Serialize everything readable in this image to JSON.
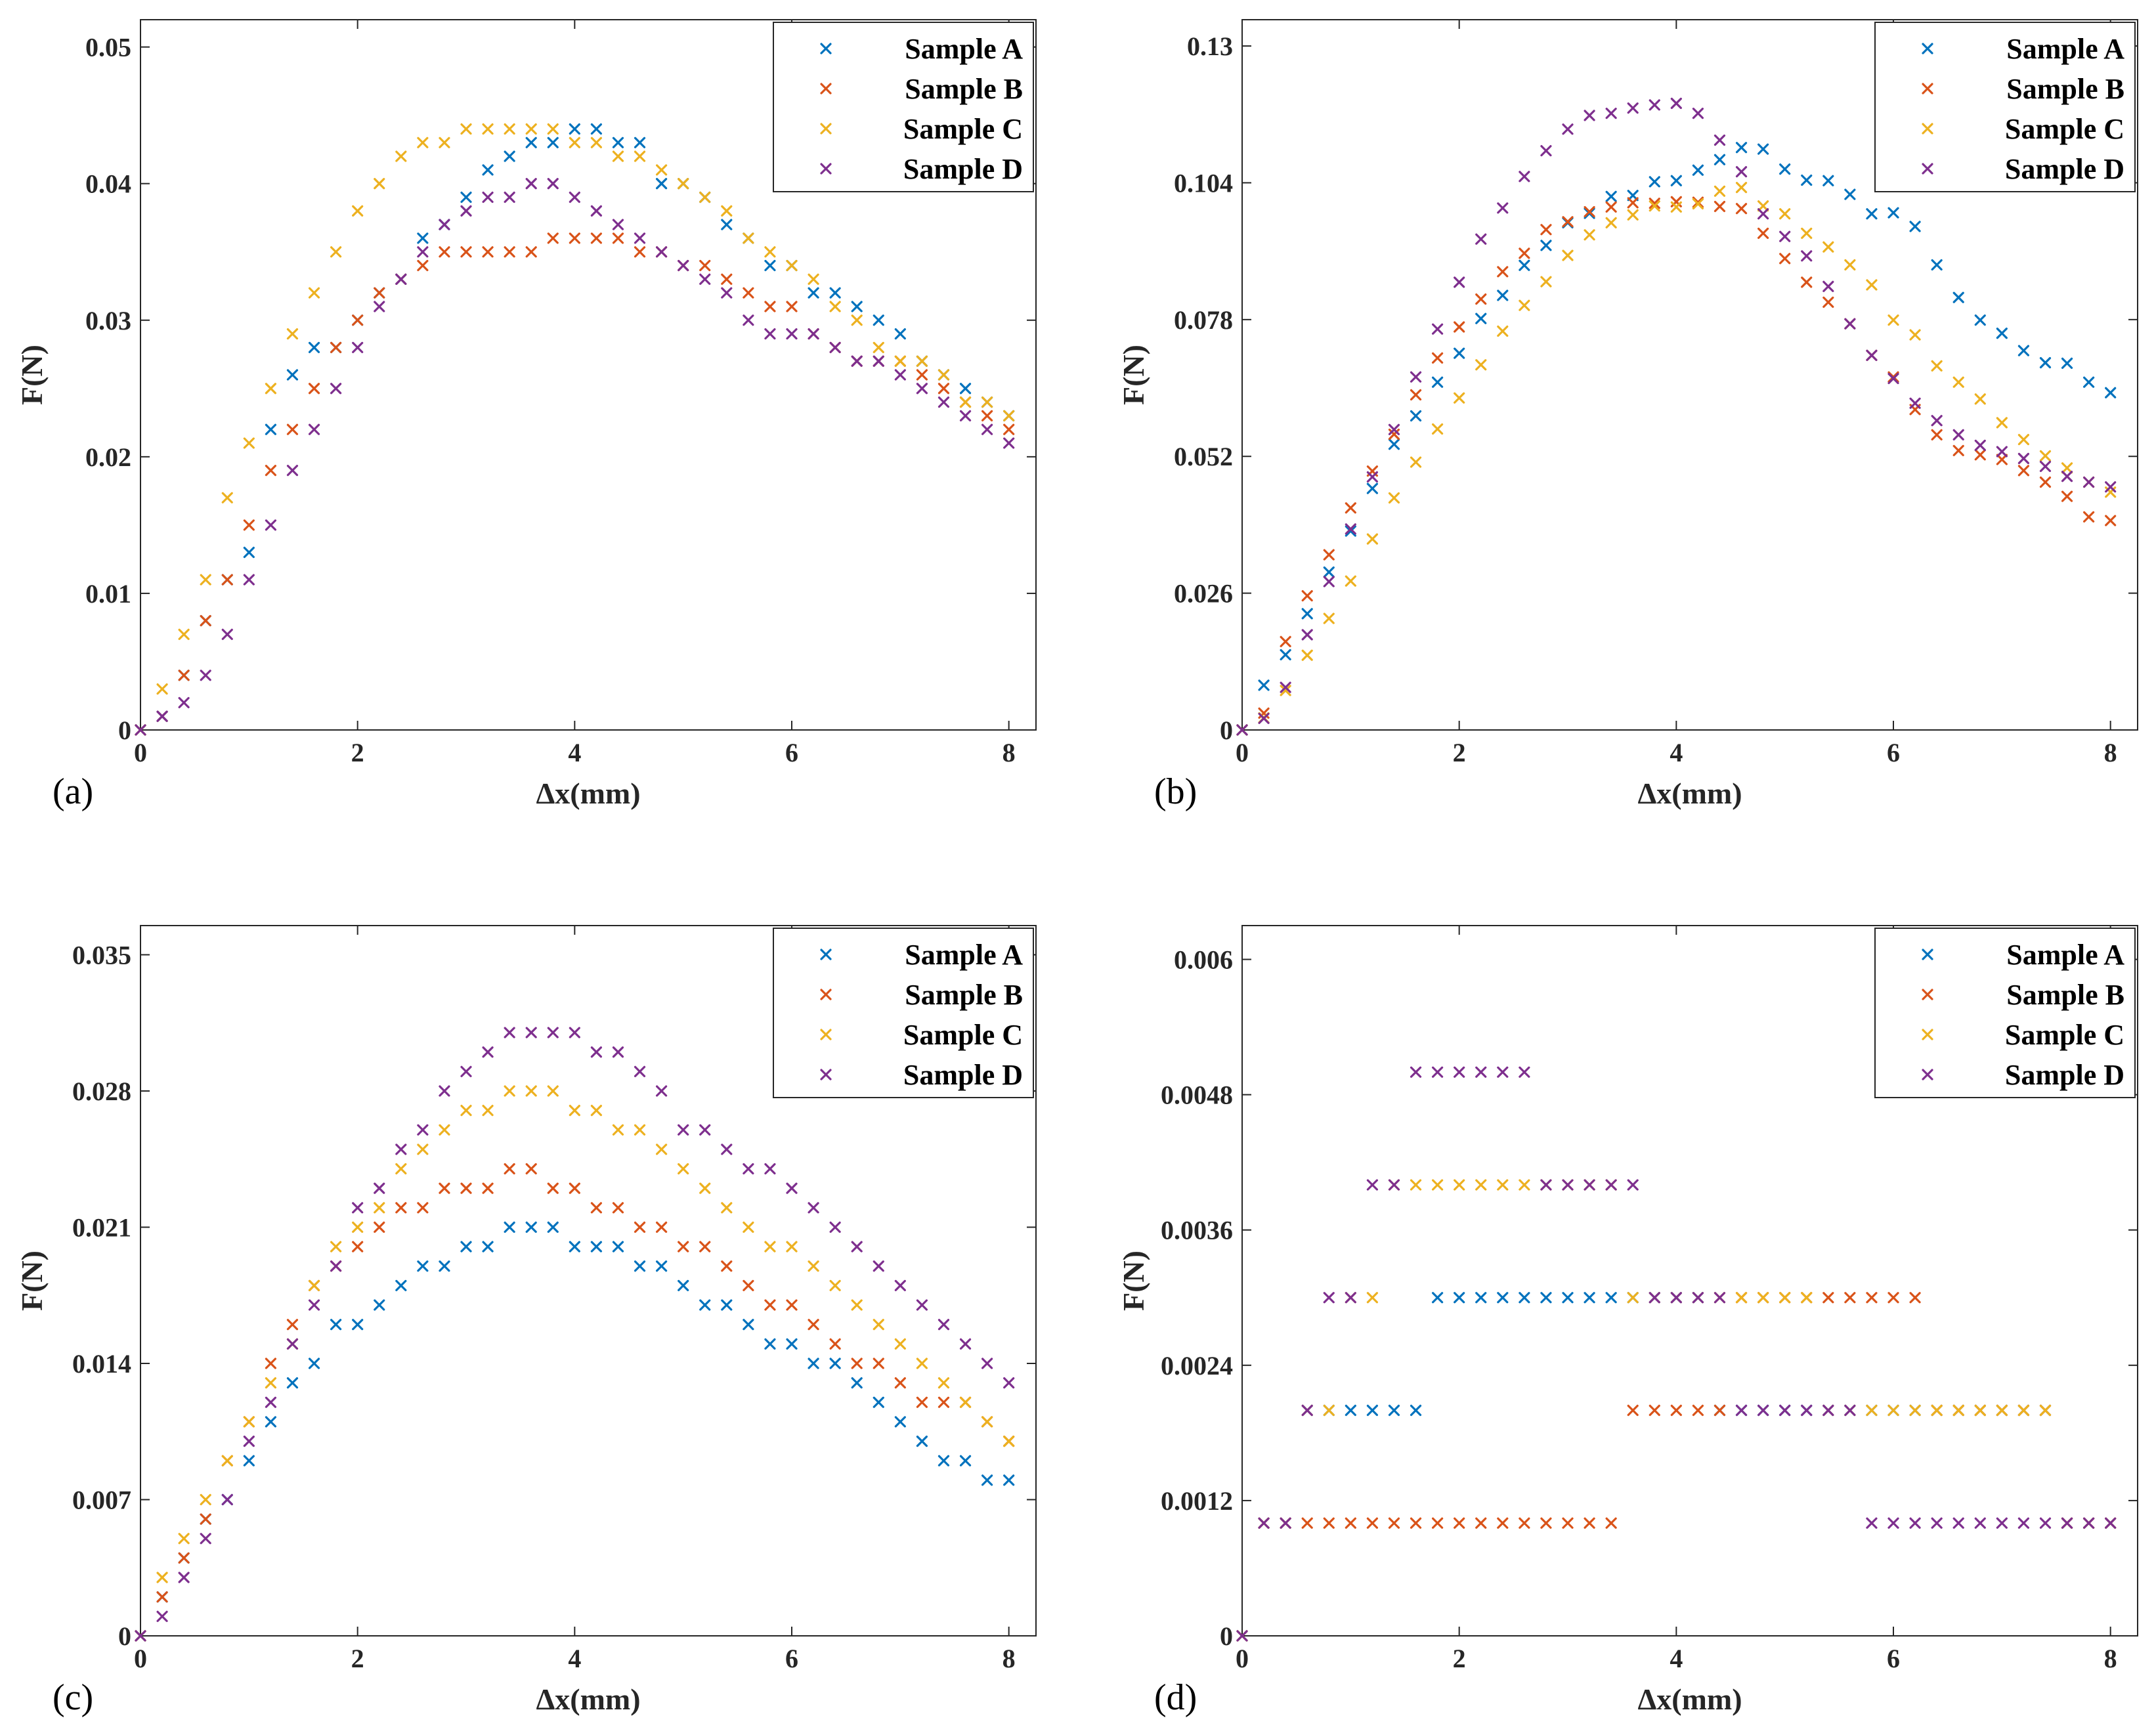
{
  "colors": {
    "Sample A": "#0072BD",
    "Sample B": "#D95319",
    "Sample C": "#EDB120",
    "Sample D": "#7E2F8E"
  },
  "chart_data": [
    {
      "panel": "(a)",
      "type": "scatter",
      "xlabel": "Δx(mm)",
      "ylabel": "F(N)",
      "xlim": [
        0,
        8.25
      ],
      "ylim": [
        0,
        0.052
      ],
      "xticks": [
        0,
        2,
        4,
        6,
        8
      ],
      "xtick_labels": [
        "0",
        "2",
        "4",
        "6",
        "8"
      ],
      "yticks": [
        0,
        0.01,
        0.02,
        0.03,
        0.04,
        0.05
      ],
      "ytick_labels": [
        "0",
        "0.01",
        "0.02",
        "0.03",
        "0.04",
        "0.05"
      ],
      "legend": [
        "Sample A",
        "Sample B",
        "Sample C",
        "Sample D"
      ],
      "legend_position": "top-right",
      "x": [
        0,
        0.2,
        0.4,
        0.6,
        0.8,
        1.0,
        1.2,
        1.4,
        1.6,
        1.8,
        2.0,
        2.2,
        2.4,
        2.6,
        2.8,
        3.0,
        3.2,
        3.4,
        3.6,
        3.8,
        4.0,
        4.2,
        4.4,
        4.6,
        4.8,
        5.0,
        5.2,
        5.4,
        5.6,
        5.8,
        6.0,
        6.2,
        6.4,
        6.6,
        6.8,
        7.0,
        7.2,
        7.4,
        7.6,
        7.8,
        8.0
      ],
      "series": [
        {
          "name": "Sample A",
          "values": [
            0,
            0.001,
            0.004,
            0.008,
            0.011,
            0.013,
            0.022,
            0.026,
            0.028,
            0.028,
            0.03,
            0.032,
            0.033,
            0.036,
            0.037,
            0.039,
            0.041,
            0.042,
            0.043,
            0.043,
            0.044,
            0.044,
            0.043,
            0.043,
            0.04,
            0.04,
            0.039,
            0.037,
            0.036,
            0.034,
            0.034,
            0.032,
            0.032,
            0.031,
            0.03,
            0.029,
            0.027,
            0.026,
            0.025,
            0.024,
            0.023
          ]
        },
        {
          "name": "Sample B",
          "values": [
            0,
            0.001,
            0.004,
            0.008,
            0.011,
            0.015,
            0.019,
            0.022,
            0.025,
            0.028,
            0.03,
            0.032,
            0.033,
            0.034,
            0.035,
            0.035,
            0.035,
            0.035,
            0.035,
            0.036,
            0.036,
            0.036,
            0.036,
            0.035,
            0.035,
            0.034,
            0.034,
            0.033,
            0.032,
            0.031,
            0.031,
            0.029,
            0.028,
            0.027,
            0.027,
            0.027,
            0.026,
            0.025,
            0.024,
            0.023,
            0.022
          ]
        },
        {
          "name": "Sample C",
          "values": [
            0,
            0.003,
            0.007,
            0.011,
            0.017,
            0.021,
            0.025,
            0.029,
            0.032,
            0.035,
            0.038,
            0.04,
            0.042,
            0.043,
            0.043,
            0.044,
            0.044,
            0.044,
            0.044,
            0.044,
            0.043,
            0.043,
            0.042,
            0.042,
            0.041,
            0.04,
            0.039,
            0.038,
            0.036,
            0.035,
            0.034,
            0.033,
            0.031,
            0.03,
            0.028,
            0.027,
            0.027,
            0.026,
            0.024,
            0.024,
            0.023
          ]
        },
        {
          "name": "Sample D",
          "values": [
            0,
            0.001,
            0.002,
            0.004,
            0.007,
            0.011,
            0.015,
            0.019,
            0.022,
            0.025,
            0.028,
            0.031,
            0.033,
            0.035,
            0.037,
            0.038,
            0.039,
            0.039,
            0.04,
            0.04,
            0.039,
            0.038,
            0.037,
            0.036,
            0.035,
            0.034,
            0.033,
            0.032,
            0.03,
            0.029,
            0.029,
            0.029,
            0.028,
            0.027,
            0.027,
            0.026,
            0.025,
            0.024,
            0.023,
            0.022,
            0.021
          ]
        }
      ]
    },
    {
      "panel": "(b)",
      "type": "scatter",
      "xlabel": "Δx(mm)",
      "ylabel": "F(N)",
      "xlim": [
        0,
        8.25
      ],
      "ylim": [
        0,
        0.135
      ],
      "xticks": [
        0,
        2,
        4,
        6,
        8
      ],
      "xtick_labels": [
        "0",
        "2",
        "4",
        "6",
        "8"
      ],
      "yticks": [
        0,
        0.026,
        0.052,
        0.078,
        0.104,
        0.13
      ],
      "ytick_labels": [
        "0",
        "0.026",
        "0.052",
        "0.078",
        "0.104",
        "0.13"
      ],
      "legend": [
        "Sample A",
        "Sample B",
        "Sample C",
        "Sample D"
      ],
      "legend_position": "top-right",
      "x": [
        0,
        0.2,
        0.4,
        0.6,
        0.8,
        1.0,
        1.2,
        1.4,
        1.6,
        1.8,
        2.0,
        2.2,
        2.4,
        2.6,
        2.8,
        3.0,
        3.2,
        3.4,
        3.6,
        3.8,
        4.0,
        4.2,
        4.4,
        4.6,
        4.8,
        5.0,
        5.2,
        5.4,
        5.6,
        5.8,
        6.0,
        6.2,
        6.4,
        6.6,
        6.8,
        7.0,
        7.2,
        7.4,
        7.6,
        7.8,
        8.0
      ],
      "series": [
        {
          "name": "Sample A",
          "values": [
            0,
            0.0085,
            0.0143,
            0.0221,
            0.03,
            0.0378,
            0.0459,
            0.0543,
            0.0597,
            0.0661,
            0.0716,
            0.0782,
            0.0826,
            0.0883,
            0.0921,
            0.0964,
            0.0982,
            0.1014,
            0.1016,
            0.1042,
            0.1044,
            0.1064,
            0.1084,
            0.1107,
            0.1104,
            0.1066,
            0.1045,
            0.1044,
            0.1018,
            0.0981,
            0.0983,
            0.0957,
            0.0884,
            0.0822,
            0.0779,
            0.0754,
            0.0721,
            0.0698,
            0.0697,
            0.0661,
            0.0641
          ]
        },
        {
          "name": "Sample B",
          "values": [
            0,
            0.0032,
            0.0168,
            0.0255,
            0.0333,
            0.0422,
            0.0492,
            0.0562,
            0.0637,
            0.0707,
            0.0766,
            0.0819,
            0.0871,
            0.0906,
            0.0951,
            0.0966,
            0.0985,
            0.0994,
            0.1002,
            0.1001,
            0.1004,
            0.1003,
            0.0995,
            0.0991,
            0.0944,
            0.0896,
            0.0851,
            0.0813,
            0.0772,
            0.0712,
            0.0671,
            0.0609,
            0.0561,
            0.0531,
            0.0523,
            0.0514,
            0.0493,
            0.0471,
            0.0444,
            0.0405,
            0.0398
          ]
        },
        {
          "name": "Sample C",
          "values": [
            0,
            0.0023,
            0.0075,
            0.0142,
            0.0212,
            0.0283,
            0.0363,
            0.0441,
            0.0509,
            0.0572,
            0.0631,
            0.0694,
            0.0758,
            0.0807,
            0.0852,
            0.0902,
            0.0941,
            0.0964,
            0.0979,
            0.0996,
            0.0994,
            0.1,
            0.1024,
            0.1031,
            0.0996,
            0.0981,
            0.0944,
            0.0918,
            0.0884,
            0.0846,
            0.0779,
            0.0751,
            0.0692,
            0.0661,
            0.0629,
            0.0584,
            0.0552,
            0.0521,
            0.0498,
            0.0471,
            0.0452
          ]
        },
        {
          "name": "Sample D",
          "values": [
            0,
            0.0022,
            0.0081,
            0.0181,
            0.0282,
            0.0382,
            0.0481,
            0.0571,
            0.0671,
            0.0762,
            0.0851,
            0.0933,
            0.0992,
            0.1052,
            0.1101,
            0.1142,
            0.1168,
            0.1172,
            0.1182,
            0.1188,
            0.1191,
            0.1172,
            0.1121,
            0.1061,
            0.0981,
            0.0938,
            0.0901,
            0.0843,
            0.0772,
            0.0712,
            0.0668,
            0.0621,
            0.0588,
            0.0561,
            0.0541,
            0.0529,
            0.0516,
            0.0501,
            0.0482,
            0.0471,
            0.0462
          ]
        }
      ]
    },
    {
      "panel": "(c)",
      "type": "scatter",
      "xlabel": "Δx(mm)",
      "ylabel": "F(N)",
      "xlim": [
        0,
        8.25
      ],
      "ylim": [
        0,
        0.0365
      ],
      "xticks": [
        0,
        2,
        4,
        6,
        8
      ],
      "xtick_labels": [
        "0",
        "2",
        "4",
        "6",
        "8"
      ],
      "yticks": [
        0,
        0.007,
        0.014,
        0.021,
        0.028,
        0.035
      ],
      "ytick_labels": [
        "0",
        "0.007",
        "0.014",
        "0.021",
        "0.028",
        "0.035"
      ],
      "legend": [
        "Sample A",
        "Sample B",
        "Sample C",
        "Sample D"
      ],
      "legend_position": "top-right",
      "x": [
        0,
        0.2,
        0.4,
        0.6,
        0.8,
        1.0,
        1.2,
        1.4,
        1.6,
        1.8,
        2.0,
        2.2,
        2.4,
        2.6,
        2.8,
        3.0,
        3.2,
        3.4,
        3.6,
        3.8,
        4.0,
        4.2,
        4.4,
        4.6,
        4.8,
        5.0,
        5.2,
        5.4,
        5.6,
        5.8,
        6.0,
        6.2,
        6.4,
        6.6,
        6.8,
        7.0,
        7.2,
        7.4,
        7.6,
        7.8,
        8.0
      ],
      "series": [
        {
          "name": "Sample A",
          "values": [
            0,
            0.002,
            0.004,
            0.006,
            0.007,
            0.009,
            0.011,
            0.013,
            0.014,
            0.016,
            0.016,
            0.017,
            0.018,
            0.019,
            0.019,
            0.02,
            0.02,
            0.021,
            0.021,
            0.021,
            0.02,
            0.02,
            0.02,
            0.019,
            0.019,
            0.018,
            0.017,
            0.017,
            0.016,
            0.015,
            0.015,
            0.014,
            0.014,
            0.013,
            0.012,
            0.011,
            0.01,
            0.009,
            0.009,
            0.008,
            0.008
          ]
        },
        {
          "name": "Sample B",
          "values": [
            0,
            0.002,
            0.004,
            0.006,
            0.009,
            0.011,
            0.014,
            0.016,
            0.018,
            0.019,
            0.02,
            0.021,
            0.022,
            0.022,
            0.023,
            0.023,
            0.023,
            0.024,
            0.024,
            0.023,
            0.023,
            0.022,
            0.022,
            0.021,
            0.021,
            0.02,
            0.02,
            0.019,
            0.018,
            0.017,
            0.017,
            0.016,
            0.015,
            0.014,
            0.014,
            0.013,
            0.012,
            0.012,
            0.012,
            0.011,
            0.01
          ]
        },
        {
          "name": "Sample C",
          "values": [
            0,
            0.003,
            0.005,
            0.007,
            0.009,
            0.011,
            0.013,
            0.015,
            0.018,
            0.02,
            0.021,
            0.022,
            0.024,
            0.025,
            0.026,
            0.027,
            0.027,
            0.028,
            0.028,
            0.028,
            0.027,
            0.027,
            0.026,
            0.026,
            0.025,
            0.024,
            0.023,
            0.022,
            0.021,
            0.02,
            0.02,
            0.019,
            0.018,
            0.017,
            0.016,
            0.015,
            0.014,
            0.013,
            0.012,
            0.011,
            0.01
          ]
        },
        {
          "name": "Sample D",
          "values": [
            0,
            0.001,
            0.003,
            0.005,
            0.007,
            0.01,
            0.012,
            0.015,
            0.017,
            0.019,
            0.022,
            0.023,
            0.025,
            0.026,
            0.028,
            0.029,
            0.03,
            0.031,
            0.031,
            0.031,
            0.031,
            0.03,
            0.03,
            0.029,
            0.028,
            0.026,
            0.026,
            0.025,
            0.024,
            0.024,
            0.023,
            0.022,
            0.021,
            0.02,
            0.019,
            0.018,
            0.017,
            0.016,
            0.015,
            0.014,
            0.013
          ]
        }
      ]
    },
    {
      "panel": "(d)",
      "type": "scatter",
      "xlabel": "Δx(mm)",
      "ylabel": "F(N)",
      "xlim": [
        0,
        8.25
      ],
      "ylim": [
        0,
        0.0063
      ],
      "xticks": [
        0,
        2,
        4,
        6,
        8
      ],
      "xtick_labels": [
        "0",
        "2",
        "4",
        "6",
        "8"
      ],
      "yticks": [
        0,
        0.0012,
        0.0024,
        0.0036,
        0.0048,
        0.006
      ],
      "ytick_labels": [
        "0",
        "0.0012",
        "0.0024",
        "0.0036",
        "0.0048",
        "0.006"
      ],
      "legend": [
        "Sample A",
        "Sample B",
        "Sample C",
        "Sample D"
      ],
      "legend_position": "top-right",
      "x": [
        0,
        0.2,
        0.4,
        0.6,
        0.8,
        1.0,
        1.2,
        1.4,
        1.6,
        1.8,
        2.0,
        2.2,
        2.4,
        2.6,
        2.8,
        3.0,
        3.2,
        3.4,
        3.6,
        3.8,
        4.0,
        4.2,
        4.4,
        4.6,
        4.8,
        5.0,
        5.2,
        5.4,
        5.6,
        5.8,
        6.0,
        6.2,
        6.4,
        6.6,
        6.8,
        7.0,
        7.2,
        7.4,
        7.6,
        7.8,
        8.0
      ],
      "series": [
        {
          "name": "Sample A",
          "values": [
            0,
            0.001,
            0.001,
            0.002,
            0.002,
            0.002,
            0.002,
            0.002,
            0.002,
            0.003,
            0.003,
            0.003,
            0.003,
            0.003,
            0.003,
            0.003,
            0.003,
            0.003,
            0.003,
            0.003,
            0.003,
            0.003,
            0.002,
            0.002,
            0.002,
            0.002,
            0.002,
            0.002,
            0.002,
            0.002,
            0.002,
            0.002,
            0.002,
            0.002,
            0.002,
            0.002,
            0.002,
            0.002,
            0.001,
            0.001,
            0.001
          ]
        },
        {
          "name": "Sample B",
          "values": [
            0,
            0.001,
            0.001,
            0.001,
            0.001,
            0.001,
            0.001,
            0.001,
            0.001,
            0.001,
            0.001,
            0.001,
            0.001,
            0.001,
            0.001,
            0.001,
            0.001,
            0.001,
            0.002,
            0.002,
            0.002,
            0.002,
            0.002,
            0.003,
            0.003,
            0.003,
            0.003,
            0.003,
            0.003,
            0.003,
            0.003,
            0.003,
            0.002,
            0.002,
            0.002,
            0.002,
            0.002,
            0.002,
            0.001,
            0.001,
            0.001
          ]
        },
        {
          "name": "Sample C",
          "values": [
            0,
            0.001,
            0.001,
            0.002,
            0.002,
            0.003,
            0.003,
            0.004,
            0.004,
            0.004,
            0.004,
            0.004,
            0.004,
            0.004,
            0.004,
            0.004,
            0.004,
            0.004,
            0.003,
            0.003,
            0.003,
            0.003,
            0.003,
            0.003,
            0.003,
            0.003,
            0.003,
            0.002,
            0.002,
            0.002,
            0.002,
            0.002,
            0.002,
            0.002,
            0.002,
            0.002,
            0.002,
            0.002,
            0.001,
            0.001,
            0.001
          ]
        },
        {
          "name": "Sample D",
          "values": [
            0,
            0.001,
            0.001,
            0.002,
            0.003,
            0.003,
            0.004,
            0.004,
            0.005,
            0.005,
            0.005,
            0.005,
            0.005,
            0.005,
            0.004,
            0.004,
            0.004,
            0.004,
            0.004,
            0.003,
            0.003,
            0.003,
            0.003,
            0.002,
            0.002,
            0.002,
            0.002,
            0.002,
            0.002,
            0.001,
            0.001,
            0.001,
            0.001,
            0.001,
            0.001,
            0.001,
            0.001,
            0.001,
            0.001,
            0.001,
            0.001
          ]
        }
      ]
    }
  ]
}
